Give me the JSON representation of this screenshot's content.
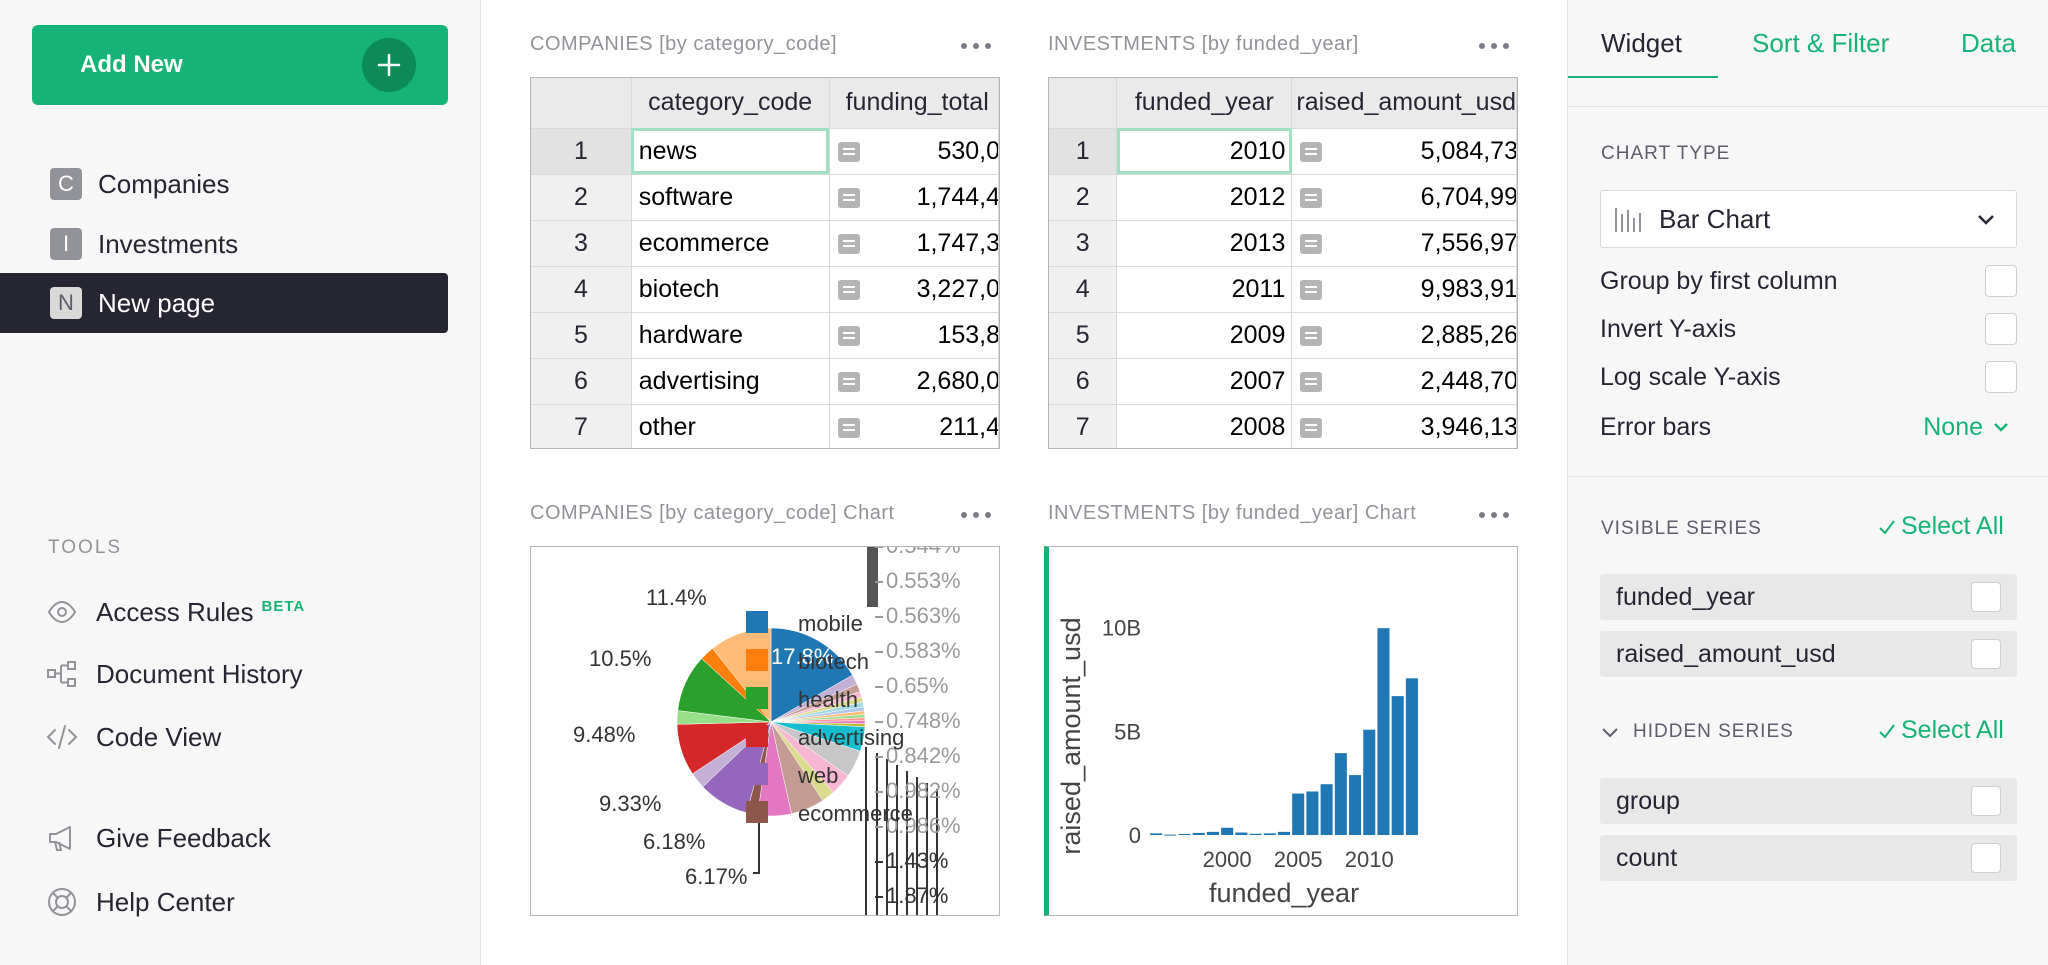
{
  "left_panel": {
    "add_new_label": "Add New",
    "pages": [
      {
        "icon": "C",
        "label": "Companies"
      },
      {
        "icon": "I",
        "label": "Investments"
      },
      {
        "icon": "N",
        "label": "New page"
      }
    ],
    "tools_header": "TOOLS",
    "tools": [
      {
        "icon": "eye-icon",
        "label": "Access Rules",
        "badge": "BETA"
      },
      {
        "icon": "history-icon",
        "label": "Document History"
      },
      {
        "icon": "code-icon",
        "label": "Code View"
      }
    ],
    "footer": [
      {
        "icon": "megaphone-icon",
        "label": "Give Feedback"
      },
      {
        "icon": "lifebuoy-icon",
        "label": "Help Center"
      }
    ]
  },
  "companies_table": {
    "title": "COMPANIES [by category_code]",
    "columns": [
      "category_code",
      "funding_total"
    ],
    "rows": [
      {
        "n": "1",
        "category": "news",
        "funding": "530,0"
      },
      {
        "n": "2",
        "category": "software",
        "funding": "1,744,4"
      },
      {
        "n": "3",
        "category": "ecommerce",
        "funding": "1,747,3"
      },
      {
        "n": "4",
        "category": "biotech",
        "funding": "3,227,0"
      },
      {
        "n": "5",
        "category": "hardware",
        "funding": "153,8"
      },
      {
        "n": "6",
        "category": "advertising",
        "funding": "2,680,0"
      },
      {
        "n": "7",
        "category": "other",
        "funding": "211,4"
      }
    ]
  },
  "investments_table": {
    "title": "INVESTMENTS [by funded_year]",
    "columns": [
      "funded_year",
      "raised_amount_usd"
    ],
    "rows": [
      {
        "n": "1",
        "year": "2010",
        "raised": "5,084,73"
      },
      {
        "n": "2",
        "year": "2012",
        "raised": "6,704,99"
      },
      {
        "n": "3",
        "year": "2013",
        "raised": "7,556,97"
      },
      {
        "n": "4",
        "year": "2011",
        "raised": "9,983,91"
      },
      {
        "n": "5",
        "year": "2009",
        "raised": "2,885,26"
      },
      {
        "n": "6",
        "year": "2007",
        "raised": "2,448,70"
      },
      {
        "n": "7",
        "year": "2008",
        "raised": "3,946,13"
      }
    ]
  },
  "pie_chart_title": "COMPANIES [by category_code] Chart",
  "bar_chart_title": "INVESTMENTS [by funded_year] Chart",
  "chart_data": [
    {
      "type": "pie",
      "title": "",
      "legend": [
        "mobile",
        "biotech",
        "health",
        "advertising",
        "web",
        "ecommerce"
      ],
      "legend_colors": [
        "#1f77b4",
        "#ff7f0e",
        "#2ca02c",
        "#d62728",
        "#9467bd",
        "#8c564b"
      ],
      "slice_labels_left": [
        "11.4%",
        "10.5%",
        "9.48%",
        "9.33%",
        "6.18%",
        "6.17%"
      ],
      "slice_labels_right": [
        "0.544%",
        "0.553%",
        "0.563%",
        "0.583%",
        "0.65%",
        "0.748%",
        "0.842%",
        "0.982%",
        "0.986%",
        "1.43%",
        "1.87%"
      ],
      "inner_label": "17.8%",
      "slices": [
        {
          "label": "mobile",
          "value": 17.8,
          "color": "#1f77b4"
        },
        {
          "value": 1.87,
          "color": "#c5b0d5"
        },
        {
          "value": 1.43,
          "color": "#c49c94"
        },
        {
          "value": 0.986,
          "color": "#f7b6d2"
        },
        {
          "value": 0.982,
          "color": "#dbdb8d"
        },
        {
          "value": 0.842,
          "color": "#9edae5"
        },
        {
          "value": 0.748,
          "color": "#aec7e8"
        },
        {
          "value": 0.65,
          "color": "#ffbb78"
        },
        {
          "value": 0.583,
          "color": "#98df8a"
        },
        {
          "value": 0.563,
          "color": "#ff9896"
        },
        {
          "value": 0.553,
          "color": "#e377c2"
        },
        {
          "value": 0.544,
          "color": "#bcbd22"
        },
        {
          "value": 4.5,
          "color": "#17becf"
        },
        {
          "value": 5.0,
          "color": "#c7c7c7"
        },
        {
          "value": 4.0,
          "color": "#f7b6d2"
        },
        {
          "value": 2.4,
          "color": "#dbdb8d"
        },
        {
          "label": "ecommerce",
          "value": 6.17,
          "color": "#c49c94"
        },
        {
          "value": 6.18,
          "color": "#e377c2"
        },
        {
          "value": 2.0,
          "color": "#8c564b"
        },
        {
          "label": "web",
          "value": 9.33,
          "color": "#9467bd"
        },
        {
          "value": 3.0,
          "color": "#c5b0d5"
        },
        {
          "label": "advertising",
          "value": 9.48,
          "color": "#d62728"
        },
        {
          "value": 2.5,
          "color": "#98df8a"
        },
        {
          "label": "health",
          "value": 10.5,
          "color": "#2ca02c"
        },
        {
          "value": 2.7,
          "color": "#ff7f0e"
        },
        {
          "label": "biotech",
          "value": 11.4,
          "color": "#ffbb78"
        }
      ]
    },
    {
      "type": "bar",
      "title": "",
      "xlabel": "funded_year",
      "ylabel": "raised_amount_usd",
      "x": [
        1995,
        1996,
        1997,
        1998,
        1999,
        2000,
        2001,
        2002,
        2003,
        2004,
        2005,
        2006,
        2007,
        2008,
        2009,
        2010,
        2011,
        2012,
        2013
      ],
      "values": [
        0.08,
        0.02,
        0.05,
        0.1,
        0.15,
        0.35,
        0.12,
        0.06,
        0.08,
        0.15,
        2.0,
        2.1,
        2.45,
        3.95,
        2.89,
        5.08,
        9.98,
        6.7,
        7.56
      ],
      "value_unit": "B",
      "ylim": [
        0,
        11
      ],
      "yticks": [
        "0",
        "5B",
        "10B"
      ],
      "xticks": [
        "2000",
        "2005",
        "2010"
      ],
      "color": "#1f77b4",
      "grid": false
    }
  ],
  "right_panel": {
    "tabs": [
      "Widget",
      "Sort & Filter",
      "Data"
    ],
    "chart_type_label": "CHART TYPE",
    "chart_type_value": "Bar Chart",
    "options": [
      "Group by first column",
      "Invert Y-axis",
      "Log scale Y-axis"
    ],
    "error_bars_label": "Error bars",
    "error_bars_value": "None",
    "visible_series_label": "VISIBLE SERIES",
    "hidden_series_label": "HIDDEN SERIES",
    "select_all": "Select All",
    "visible_series": [
      "funded_year",
      "raised_amount_usd"
    ],
    "hidden_series": [
      "group",
      "count"
    ],
    "accent": "#16b378"
  }
}
